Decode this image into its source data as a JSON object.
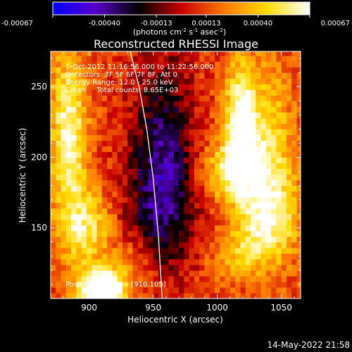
{
  "chart_data": {
    "type": "heatmap",
    "title": "Reconstructed RHESSI Image",
    "xlabel": "Heliocentric X (arcsec)",
    "ylabel": "Heliocentric Y (arcsec)",
    "xlim": [
      870,
      1065
    ],
    "ylim": [
      100,
      275
    ],
    "x_ticks": [
      900,
      950,
      1000,
      1050
    ],
    "y_ticks": [
      150,
      200,
      250
    ],
    "colorbar": {
      "vmin": -0.00067,
      "vmax": 0.00067,
      "ticks": [
        {
          "value": -0.00067,
          "label": "-0.00067"
        },
        {
          "value": -0.0004,
          "label": "-0.00040"
        },
        {
          "value": -0.00013,
          "label": "-0.00013"
        },
        {
          "value": 0.00013,
          "label": "0.00013"
        },
        {
          "value": 0.0004,
          "label": "0.00040"
        },
        {
          "value": 0.00067,
          "label": "0.00067"
        }
      ],
      "unit": {
        "prefix": "(photons cm",
        "exp1": "-2",
        "mid1": " s",
        "exp2": "-1",
        "mid2": " asec",
        "exp3": "-2",
        "suffix": ")"
      },
      "colormap": [
        "#0000ff",
        "#5a00c8",
        "#000000",
        "#c80000",
        "#ff7800",
        "#ffdc00",
        "#ffffff"
      ]
    },
    "annotations": [
      "1-Oct-2012 11:16:56.000 to 11:22:56.000",
      "Detectors: 3F 5F 6F 7F 8F, Att 0",
      "Energy Range: 12.0 - 25.0 keV",
      "Clean     Total counts: 8.65E+03"
    ],
    "peak_label": "Position of Peak = [910,105]",
    "peak": {
      "x": 910,
      "y": 105
    },
    "limb_curve": [
      {
        "x": 932,
        "y": 275
      },
      {
        "x": 939,
        "y": 250
      },
      {
        "x": 945,
        "y": 220
      },
      {
        "x": 950,
        "y": 185
      },
      {
        "x": 954,
        "y": 145
      },
      {
        "x": 957,
        "y": 100
      }
    ],
    "emission_sources": [
      {
        "x": 910,
        "y": 105,
        "sx": 12,
        "sy": 10,
        "amp": 1.6
      },
      {
        "x": 884,
        "y": 218,
        "sx": 10,
        "sy": 40,
        "amp": 0.8
      },
      {
        "x": 898,
        "y": 150,
        "sx": 15,
        "sy": 20,
        "amp": 0.62
      },
      {
        "x": 1018,
        "y": 225,
        "sx": 9,
        "sy": 30,
        "amp": 0.88
      },
      {
        "x": 1010,
        "y": 190,
        "sx": 18,
        "sy": 15,
        "amp": 0.55
      },
      {
        "x": 1040,
        "y": 200,
        "sx": 14,
        "sy": 45,
        "amp": 0.58
      },
      {
        "x": 1040,
        "y": 155,
        "sx": 18,
        "sy": 20,
        "amp": 0.5
      },
      {
        "x": 1015,
        "y": 130,
        "sx": 14,
        "sy": 12,
        "amp": 0.38
      },
      {
        "x": 935,
        "y": 125,
        "sx": 12,
        "sy": 12,
        "amp": 0.3
      }
    ],
    "negative_regions": [
      {
        "x": 958,
        "y": 208,
        "sx": 16,
        "sy": 45,
        "amp": 0.62
      },
      {
        "x": 955,
        "y": 160,
        "sx": 22,
        "sy": 30,
        "amp": 0.38
      }
    ]
  },
  "footer": {
    "timestamp": "14-May-2022 21:58"
  }
}
